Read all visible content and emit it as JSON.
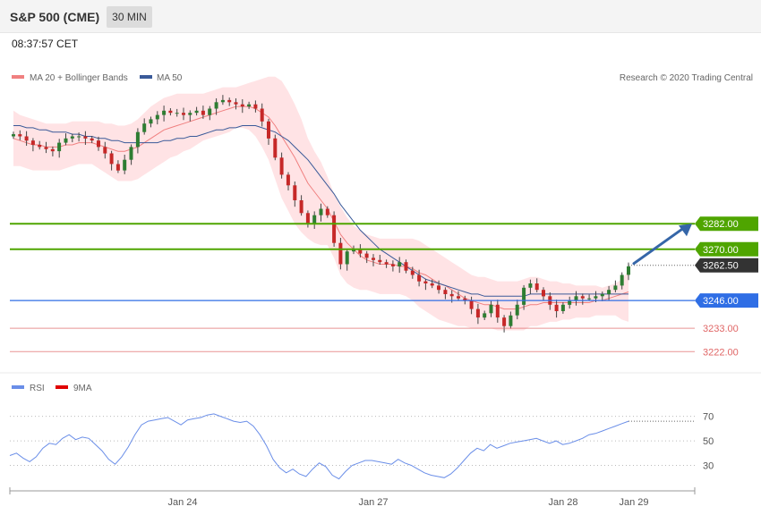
{
  "header": {
    "title": "S&P 500 (CME)",
    "timeframe": "30 MIN"
  },
  "timestamp": "08:37:57 CET",
  "copyright": "Research © 2020 Trading Central",
  "colors": {
    "ma20": "#f08080",
    "ma50": "#3a5a99",
    "band_fill": "#ffd9dc",
    "resistance": "#4fa500",
    "support": "#2f6ee5",
    "support_weak": "#e06666",
    "candle_up": "#2e7d32",
    "candle_down": "#c62828",
    "rsi": "#6a8ee8",
    "rsi_ma": "#e00000",
    "arrow": "#3566a8",
    "current": "#333333"
  },
  "chart_data": [
    {
      "type": "candlestick",
      "title": "S&P 500 (CME)",
      "legend": [
        {
          "name": "MA 20 + Bollinger Bands",
          "color": "#f08080"
        },
        {
          "name": "MA 50",
          "color": "#3a5a99"
        }
      ],
      "x_labels": [
        "Jan 24",
        "Jan 27",
        "Jan 28",
        "Jan 29"
      ],
      "ylim": [
        3215,
        3345
      ],
      "levels": [
        {
          "label": "3282.00",
          "value": 3282.0,
          "kind": "resistance"
        },
        {
          "label": "3270.00",
          "value": 3270.0,
          "kind": "resistance"
        },
        {
          "label": "3262.50",
          "value": 3262.5,
          "kind": "current"
        },
        {
          "label": "3246.00",
          "value": 3246.0,
          "kind": "support"
        },
        {
          "label": "3233.00",
          "value": 3233.0,
          "kind": "support_weak"
        },
        {
          "label": "3222.00",
          "value": 3222.0,
          "kind": "support_weak"
        }
      ],
      "target_arrow": {
        "from": 3262.5,
        "to": 3282.0
      },
      "close_series": [
        3324,
        3323,
        3321,
        3319,
        3318,
        3317,
        3316,
        3320,
        3322,
        3323,
        3323,
        3322,
        3321,
        3318,
        3315,
        3310,
        3307,
        3312,
        3318,
        3325,
        3329,
        3331,
        3333,
        3335,
        3334,
        3334,
        3333,
        3334,
        3335,
        3333,
        3336,
        3339,
        3340,
        3339,
        3338,
        3337,
        3338,
        3336,
        3330,
        3322,
        3313,
        3305,
        3300,
        3293,
        3287,
        3282,
        3286,
        3289,
        3286,
        3273,
        3263,
        3269,
        3270,
        3268,
        3266,
        3265,
        3264,
        3263,
        3262,
        3264,
        3260,
        3258,
        3255,
        3254,
        3253,
        3251,
        3249,
        3248,
        3247,
        3246,
        3242,
        3238,
        3240,
        3244,
        3238,
        3234,
        3239,
        3244,
        3252,
        3254,
        3251,
        3248,
        3244,
        3241,
        3244,
        3246,
        3248,
        3247,
        3247,
        3248,
        3249,
        3251,
        3253,
        3258,
        3262
      ],
      "ma20_series": [
        3322,
        3321,
        3320,
        3319,
        3319,
        3318,
        3318,
        3318,
        3319,
        3319,
        3320,
        3320,
        3320,
        3319,
        3318,
        3317,
        3316,
        3316,
        3317,
        3318,
        3320,
        3322,
        3324,
        3326,
        3327,
        3328,
        3329,
        3330,
        3331,
        3332,
        3333,
        3334,
        3335,
        3336,
        3337,
        3337,
        3337,
        3336,
        3334,
        3332,
        3328,
        3323,
        3318,
        3313,
        3307,
        3301,
        3297,
        3293,
        3289,
        3283,
        3277,
        3273,
        3270,
        3267,
        3265,
        3264,
        3263,
        3263,
        3263,
        3262,
        3262,
        3261,
        3259,
        3258,
        3256,
        3254,
        3253,
        3251,
        3249,
        3247,
        3246,
        3245,
        3244,
        3244,
        3243,
        3242,
        3242,
        3242,
        3243,
        3244,
        3244,
        3245,
        3245,
        3245,
        3245,
        3245,
        3245,
        3245,
        3245,
        3246,
        3246,
        3247,
        3248,
        3249,
        3250
      ],
      "band_upper": [
        3335,
        3333,
        3332,
        3331,
        3330,
        3329,
        3329,
        3329,
        3329,
        3330,
        3330,
        3330,
        3330,
        3330,
        3329,
        3329,
        3328,
        3328,
        3329,
        3331,
        3334,
        3337,
        3339,
        3341,
        3342,
        3343,
        3343,
        3343,
        3343,
        3343,
        3344,
        3345,
        3346,
        3346,
        3346,
        3347,
        3348,
        3349,
        3350,
        3351,
        3351,
        3349,
        3344,
        3338,
        3331,
        3322,
        3316,
        3311,
        3304,
        3296,
        3290,
        3285,
        3281,
        3279,
        3277,
        3276,
        3275,
        3275,
        3275,
        3275,
        3275,
        3275,
        3274,
        3272,
        3270,
        3268,
        3266,
        3264,
        3262,
        3260,
        3258,
        3257,
        3257,
        3256,
        3255,
        3255,
        3255,
        3255,
        3256,
        3257,
        3257,
        3256,
        3255,
        3255,
        3254,
        3254,
        3253,
        3253,
        3253,
        3253,
        3252,
        3253,
        3254,
        3256,
        3260
      ],
      "band_lower": [
        3309,
        3309,
        3308,
        3307,
        3307,
        3307,
        3307,
        3307,
        3308,
        3309,
        3310,
        3310,
        3310,
        3308,
        3306,
        3304,
        3302,
        3302,
        3302,
        3303,
        3305,
        3307,
        3309,
        3311,
        3313,
        3314,
        3316,
        3317,
        3319,
        3321,
        3322,
        3323,
        3324,
        3325,
        3327,
        3327,
        3326,
        3323,
        3318,
        3312,
        3303,
        3294,
        3288,
        3282,
        3278,
        3275,
        3273,
        3272,
        3272,
        3266,
        3258,
        3254,
        3252,
        3251,
        3251,
        3250,
        3249,
        3249,
        3249,
        3249,
        3248,
        3246,
        3243,
        3241,
        3239,
        3237,
        3236,
        3235,
        3234,
        3234,
        3233,
        3233,
        3233,
        3233,
        3232,
        3232,
        3232,
        3232,
        3232,
        3234,
        3234,
        3235,
        3236,
        3236,
        3237,
        3237,
        3238,
        3238,
        3238,
        3239,
        3239,
        3239,
        3239,
        3237,
        3236
      ],
      "ma50_series": [
        3328,
        3328,
        3327,
        3327,
        3326,
        3326,
        3325,
        3325,
        3325,
        3324,
        3324,
        3323,
        3323,
        3322,
        3322,
        3321,
        3321,
        3320,
        3320,
        3320,
        3320,
        3320,
        3320,
        3321,
        3321,
        3322,
        3322,
        3323,
        3323,
        3324,
        3325,
        3326,
        3326,
        3327,
        3327,
        3328,
        3328,
        3328,
        3327,
        3326,
        3325,
        3323,
        3321,
        3318,
        3315,
        3312,
        3308,
        3304,
        3300,
        3296,
        3291,
        3287,
        3283,
        3279,
        3276,
        3273,
        3270,
        3268,
        3266,
        3264,
        3262,
        3260,
        3258,
        3256,
        3255,
        3254,
        3253,
        3252,
        3251,
        3250,
        3249,
        3249,
        3248,
        3248,
        3248,
        3248,
        3248,
        3248,
        3248,
        3249,
        3249,
        3249,
        3249,
        3249,
        3249,
        3249,
        3249,
        3249,
        3249,
        3249,
        3249,
        3249,
        3249,
        3249,
        3249
      ]
    },
    {
      "type": "line",
      "legend": [
        {
          "name": "RSI",
          "color": "#6a8ee8"
        },
        {
          "name": "9MA",
          "color": "#e00000"
        }
      ],
      "ylim": [
        10,
        85
      ],
      "y_ticks": [
        70,
        50,
        30
      ],
      "rsi_series": [
        38,
        40,
        36,
        33,
        37,
        44,
        48,
        47,
        52,
        55,
        51,
        53,
        52,
        47,
        42,
        35,
        31,
        37,
        45,
        55,
        63,
        66,
        67,
        68,
        69,
        66,
        63,
        67,
        68,
        69,
        71,
        72,
        70,
        68,
        66,
        65,
        66,
        62,
        55,
        46,
        35,
        28,
        24,
        27,
        23,
        21,
        27,
        32,
        29,
        22,
        19,
        25,
        30,
        32,
        34,
        34,
        33,
        32,
        31,
        35,
        32,
        30,
        27,
        24,
        22,
        21,
        20,
        23,
        28,
        34,
        40,
        44,
        42,
        47,
        44,
        46,
        48,
        49,
        50,
        51,
        52,
        50,
        48,
        50,
        47,
        48,
        50,
        52,
        55,
        56,
        58,
        60,
        62,
        64,
        66
      ],
      "current_value": 66
    }
  ]
}
